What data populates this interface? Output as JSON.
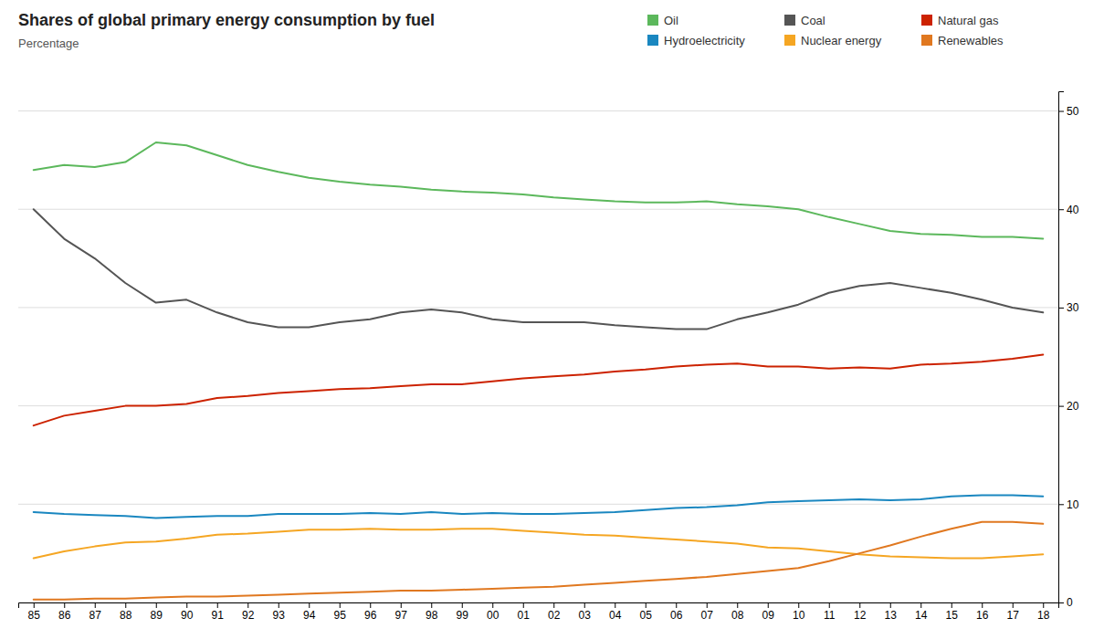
{
  "chart_data": {
    "type": "line",
    "title": "Shares of global primary energy consumption by fuel",
    "subtitle": "Percentage",
    "categories": [
      "85",
      "86",
      "87",
      "88",
      "89",
      "90",
      "91",
      "92",
      "93",
      "94",
      "95",
      "96",
      "97",
      "98",
      "99",
      "00",
      "01",
      "02",
      "03",
      "04",
      "05",
      "06",
      "07",
      "08",
      "09",
      "10",
      "11",
      "12",
      "13",
      "14",
      "15",
      "16",
      "17",
      "18"
    ],
    "series": [
      {
        "name": "Oil",
        "color": "#5cb85c",
        "values": [
          44.0,
          44.5,
          44.3,
          44.8,
          46.8,
          46.5,
          45.5,
          44.5,
          43.8,
          43.2,
          42.8,
          42.5,
          42.3,
          42.0,
          41.8,
          41.7,
          41.5,
          41.2,
          41.0,
          40.8,
          40.7,
          40.7,
          40.8,
          40.5,
          40.3,
          40.0,
          39.2,
          38.5,
          37.8,
          37.5,
          37.4,
          37.2,
          37.2,
          37.0
        ]
      },
      {
        "name": "Coal",
        "color": "#555555",
        "values": [
          40.0,
          37.0,
          35.0,
          32.5,
          30.5,
          30.8,
          29.5,
          28.5,
          28.0,
          28.0,
          28.5,
          28.8,
          29.5,
          29.8,
          29.5,
          28.8,
          28.5,
          28.5,
          28.5,
          28.2,
          28.0,
          27.8,
          27.8,
          28.8,
          29.5,
          30.3,
          31.5,
          32.2,
          32.5,
          32.0,
          31.5,
          30.8,
          30.0,
          29.5
        ]
      },
      {
        "name": "Natural gas",
        "color": "#cc2200",
        "values": [
          18.0,
          19.0,
          19.5,
          20.0,
          20.0,
          20.2,
          20.8,
          21.0,
          21.3,
          21.5,
          21.7,
          21.8,
          22.0,
          22.2,
          22.2,
          22.5,
          22.8,
          23.0,
          23.2,
          23.5,
          23.7,
          24.0,
          24.2,
          24.3,
          24.0,
          24.0,
          23.8,
          23.9,
          23.8,
          24.2,
          24.3,
          24.5,
          24.8,
          25.2
        ]
      },
      {
        "name": "Hydroelectricity",
        "color": "#1a87c0",
        "values": [
          9.2,
          9.0,
          8.9,
          8.8,
          8.6,
          8.7,
          8.8,
          8.8,
          9.0,
          9.0,
          9.0,
          9.1,
          9.0,
          9.2,
          9.0,
          9.1,
          9.0,
          9.0,
          9.1,
          9.2,
          9.4,
          9.6,
          9.7,
          9.9,
          10.2,
          10.3,
          10.4,
          10.5,
          10.4,
          10.5,
          10.8,
          10.9,
          10.9,
          10.8
        ]
      },
      {
        "name": "Nuclear energy",
        "color": "#f5a623",
        "values": [
          4.5,
          5.2,
          5.7,
          6.1,
          6.2,
          6.5,
          6.9,
          7.0,
          7.2,
          7.4,
          7.4,
          7.5,
          7.4,
          7.4,
          7.5,
          7.5,
          7.3,
          7.1,
          6.9,
          6.8,
          6.6,
          6.4,
          6.2,
          6.0,
          5.6,
          5.5,
          5.2,
          4.9,
          4.7,
          4.6,
          4.5,
          4.5,
          4.7,
          4.9
        ]
      },
      {
        "name": "Renewables",
        "color": "#e07820",
        "values": [
          0.3,
          0.3,
          0.4,
          0.4,
          0.5,
          0.6,
          0.6,
          0.7,
          0.8,
          0.9,
          1.0,
          1.1,
          1.2,
          1.2,
          1.3,
          1.4,
          1.5,
          1.6,
          1.8,
          2.0,
          2.2,
          2.4,
          2.6,
          2.9,
          3.2,
          3.5,
          4.2,
          5.0,
          5.8,
          6.7,
          7.5,
          8.2,
          8.2,
          8.0
        ]
      }
    ],
    "ylim": [
      0,
      52
    ],
    "yticks": [
      0,
      10,
      20,
      30,
      40,
      50
    ],
    "grid": true,
    "legend": "top-right"
  }
}
